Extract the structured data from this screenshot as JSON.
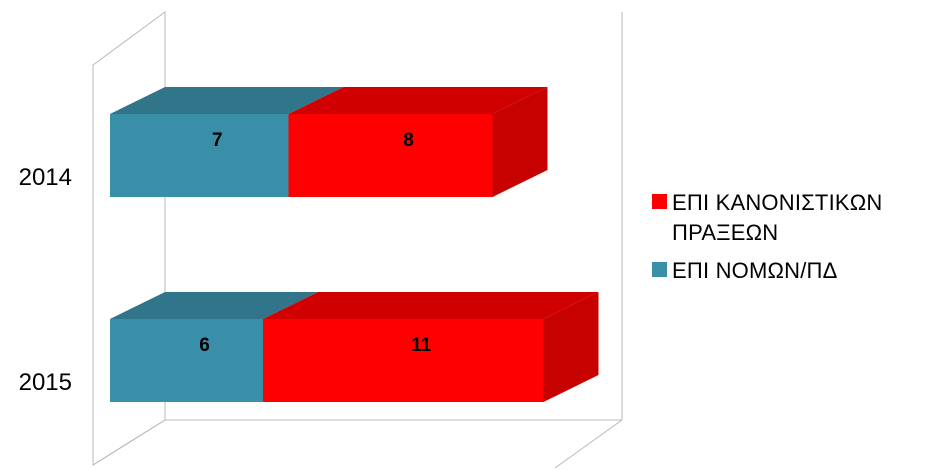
{
  "chart_data": {
    "type": "bar",
    "orientation": "horizontal",
    "stacked": true,
    "three_d": true,
    "categories": [
      "2014",
      "2015"
    ],
    "series": [
      {
        "name": "ΕΠΙ ΝΟΜΩΝ/ΠΔ",
        "values": [
          7,
          6
        ],
        "color": "#3A8FA8"
      },
      {
        "name": "ΕΠΙ ΚΑΝΟΝΙΣΤΙΚΩΝ ΠΡΑΞΕΩΝ",
        "values": [
          8,
          11
        ],
        "color": "#FF0000"
      }
    ],
    "xlim": [
      0,
      18
    ],
    "grid": false,
    "legend": "right",
    "legend_order": [
      1,
      0
    ]
  }
}
